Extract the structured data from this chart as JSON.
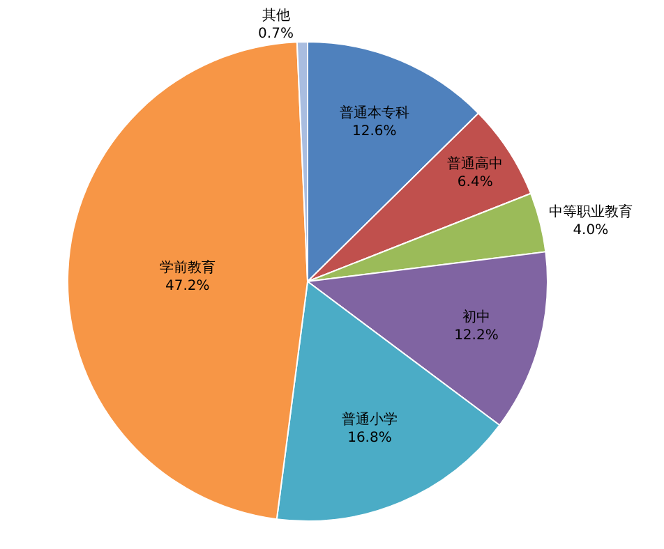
{
  "chart_data": {
    "type": "pie",
    "categories": [
      "普通本专科",
      "普通高中",
      "中等职业教育",
      "初中",
      "普通小学",
      "学前教育",
      "其他"
    ],
    "values": [
      12.6,
      6.4,
      4.0,
      12.2,
      16.8,
      47.2,
      0.7
    ],
    "value_labels": [
      "12.6%",
      "6.4%",
      "4.0%",
      "12.2%",
      "16.8%",
      "47.2%",
      "0.7%"
    ],
    "colors": [
      "#4f81bd",
      "#c0504d",
      "#9bbb59",
      "#8064a2",
      "#4bacc6",
      "#f79646",
      "#a9bde0"
    ],
    "legend": false
  }
}
